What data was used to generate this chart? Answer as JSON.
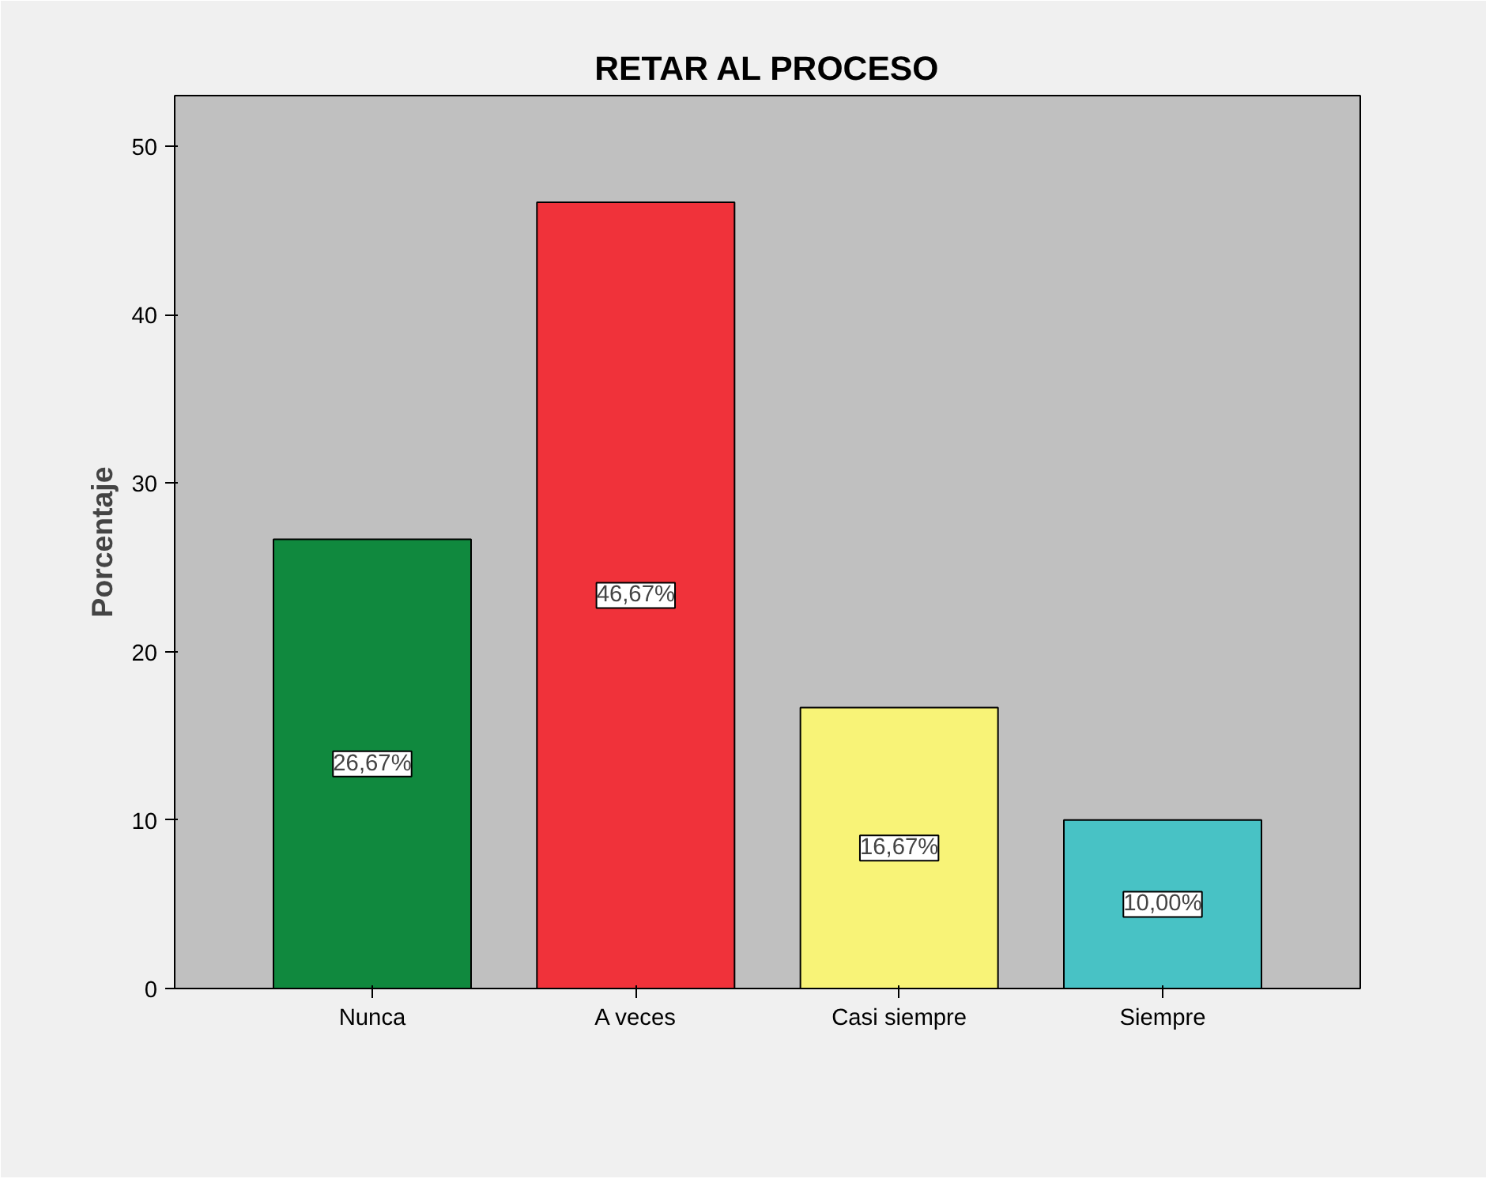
{
  "chart_data": {
    "type": "bar",
    "title": "RETAR AL PROCESO",
    "ylabel": "Porcentaje",
    "categories": [
      "Nunca",
      "A veces",
      "Casi siempre",
      "Siempre"
    ],
    "values": [
      26.67,
      46.67,
      16.67,
      10.0
    ],
    "colors": [
      "#10893e",
      "#f0323a",
      "#f8f377",
      "#48c2c5"
    ],
    "value_labels": [
      "26,67%",
      "46,67%",
      "16,67%",
      "10,00%"
    ],
    "ylim": [
      0,
      53
    ],
    "yticks": [
      0,
      10,
      20,
      30,
      40,
      50
    ],
    "grid": false
  }
}
